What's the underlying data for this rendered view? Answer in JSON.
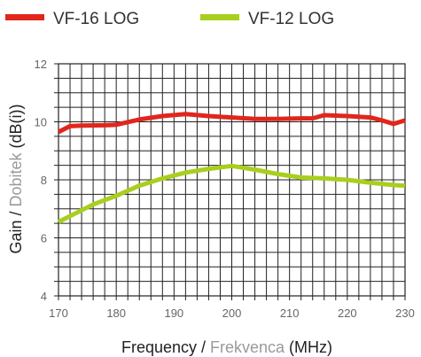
{
  "chart_data": {
    "type": "line",
    "xlabel_parts": [
      "Frequency / ",
      "Frekvenca",
      " (MHz)"
    ],
    "ylabel_parts": [
      "Gain / ",
      "Dobitek",
      " (dB(i))"
    ],
    "xlim": [
      170,
      230
    ],
    "ylim": [
      4,
      12
    ],
    "x_ticks": [
      170,
      180,
      190,
      200,
      210,
      220,
      230
    ],
    "y_ticks": [
      4,
      6,
      8,
      10,
      12
    ],
    "grid": true,
    "legend_position": "top",
    "series": [
      {
        "name": "VF-16 LOG",
        "color": "#e1261c",
        "x": [
          170,
          172,
          174,
          178,
          180,
          184,
          188,
          192,
          196,
          200,
          204,
          208,
          212,
          214,
          216,
          220,
          224,
          226,
          228,
          230
        ],
        "y": [
          9.65,
          9.85,
          9.87,
          9.88,
          9.9,
          10.08,
          10.2,
          10.27,
          10.2,
          10.15,
          10.1,
          10.1,
          10.12,
          10.12,
          10.23,
          10.2,
          10.15,
          10.05,
          9.93,
          10.05
        ]
      },
      {
        "name": "VF-12 LOG",
        "color": "#a8cf1e",
        "x": [
          170,
          173,
          176,
          180,
          184,
          188,
          192,
          196,
          200,
          204,
          208,
          212,
          216,
          220,
          224,
          228,
          230
        ],
        "y": [
          6.55,
          6.85,
          7.15,
          7.45,
          7.8,
          8.05,
          8.25,
          8.38,
          8.48,
          8.35,
          8.2,
          8.08,
          8.05,
          8.0,
          7.9,
          7.82,
          7.8
        ]
      }
    ]
  }
}
